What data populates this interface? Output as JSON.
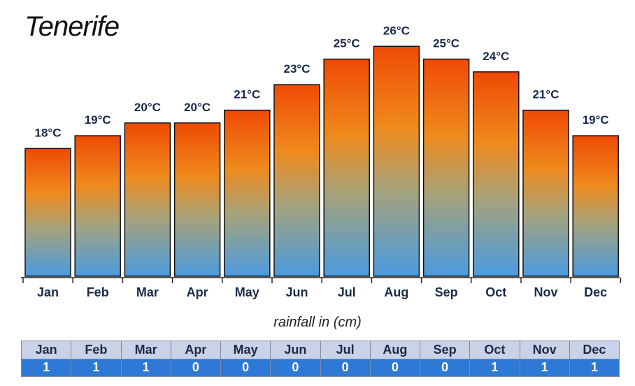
{
  "chart_data": {
    "type": "bar",
    "title": "Tenerife",
    "categories": [
      "Jan",
      "Feb",
      "Mar",
      "Apr",
      "May",
      "Jun",
      "Jul",
      "Aug",
      "Sep",
      "Oct",
      "Nov",
      "Dec"
    ],
    "values": [
      18,
      19,
      20,
      20,
      21,
      23,
      25,
      26,
      25,
      24,
      21,
      19
    ],
    "value_labels": [
      "18°C",
      "19°C",
      "20°C",
      "20°C",
      "21°C",
      "23°C",
      "25°C",
      "26°C",
      "25°C",
      "24°C",
      "21°C",
      "19°C"
    ],
    "ylim": [
      8,
      27
    ],
    "colors": {
      "top": "#ef4a05",
      "mid": "#ef8a1c",
      "low": "#a7a27a",
      "bottom": "#4a9be0",
      "border": "#111111"
    }
  },
  "rainfall": {
    "title": "rainfall in (cm)",
    "months": [
      "Jan",
      "Feb",
      "Mar",
      "Apr",
      "May",
      "Jun",
      "Jul",
      "Aug",
      "Sep",
      "Oct",
      "Nov",
      "Dec"
    ],
    "values": [
      "1",
      "1",
      "1",
      "0",
      "0",
      "0",
      "0",
      "0",
      "0",
      "1",
      "1",
      "1"
    ]
  }
}
